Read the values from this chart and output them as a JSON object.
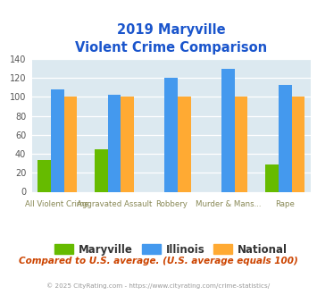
{
  "title_line1": "2019 Maryville",
  "title_line2": "Violent Crime Comparison",
  "cat_line1": [
    "",
    "Aggravated Assault",
    "",
    "Murder & Mans...",
    ""
  ],
  "cat_line2": [
    "All Violent Crime",
    "",
    "Robbery",
    "",
    "Rape"
  ],
  "maryville": [
    33,
    45,
    0,
    0,
    29
  ],
  "illinois": [
    108,
    102,
    120,
    130,
    113
  ],
  "national": [
    100,
    100,
    100,
    100,
    100
  ],
  "maryville_color": "#66bb00",
  "illinois_color": "#4499ee",
  "national_color": "#ffaa33",
  "title_color": "#1a55cc",
  "plot_bg": "#dce9f0",
  "ylim": [
    0,
    140
  ],
  "yticks": [
    0,
    20,
    40,
    60,
    80,
    100,
    120,
    140
  ],
  "footer_text": "Compared to U.S. average. (U.S. average equals 100)",
  "footer_color": "#cc4400",
  "copyright_text": "© 2025 CityRating.com - https://www.cityrating.com/crime-statistics/",
  "copyright_color": "#999999",
  "legend_labels": [
    "Maryville",
    "Illinois",
    "National"
  ]
}
